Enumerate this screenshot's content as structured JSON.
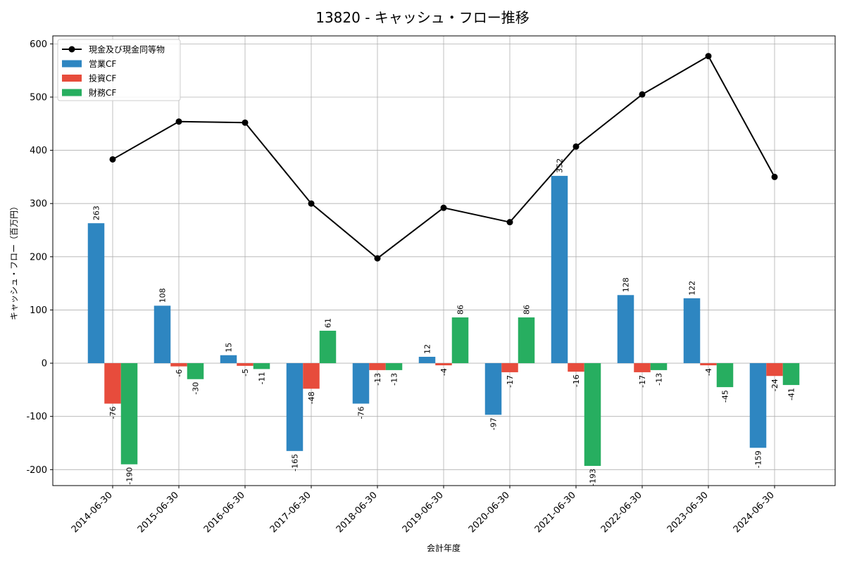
{
  "chart_data": {
    "type": "bar",
    "title": "13820 - キャッシュ・フロー推移",
    "xlabel": "会計年度",
    "ylabel": "キャッシュ・フロー（百万円）",
    "ylim": [
      -230,
      615
    ],
    "yticks": [
      -200,
      -100,
      0,
      100,
      200,
      300,
      400,
      500,
      600
    ],
    "grid": true,
    "legend_position": "top-left",
    "categories": [
      "2014-06-30",
      "2015-06-30",
      "2016-06-30",
      "2017-06-30",
      "2018-06-30",
      "2019-06-30",
      "2020-06-30",
      "2021-06-30",
      "2022-06-30",
      "2023-06-30",
      "2024-06-30"
    ],
    "series": [
      {
        "name": "営業CF",
        "kind": "bar",
        "color": "#2e86c1",
        "values": [
          263,
          108,
          15,
          -165,
          -76,
          12,
          -97,
          352,
          128,
          122,
          -159
        ]
      },
      {
        "name": "投資CF",
        "kind": "bar",
        "color": "#e74c3c",
        "values": [
          -76,
          -6,
          -5,
          -48,
          -13,
          -4,
          -17,
          -16,
          -17,
          -4,
          -24
        ]
      },
      {
        "name": "財務CF",
        "kind": "bar",
        "color": "#27ae60",
        "values": [
          -190,
          -30,
          -11,
          61,
          -13,
          86,
          86,
          -193,
          -13,
          -45,
          -41
        ]
      },
      {
        "name": "現金及び現金同等物",
        "kind": "line",
        "color": "#000000",
        "values": [
          383,
          454,
          452,
          300,
          197,
          292,
          265,
          407,
          505,
          577,
          350
        ]
      }
    ]
  }
}
